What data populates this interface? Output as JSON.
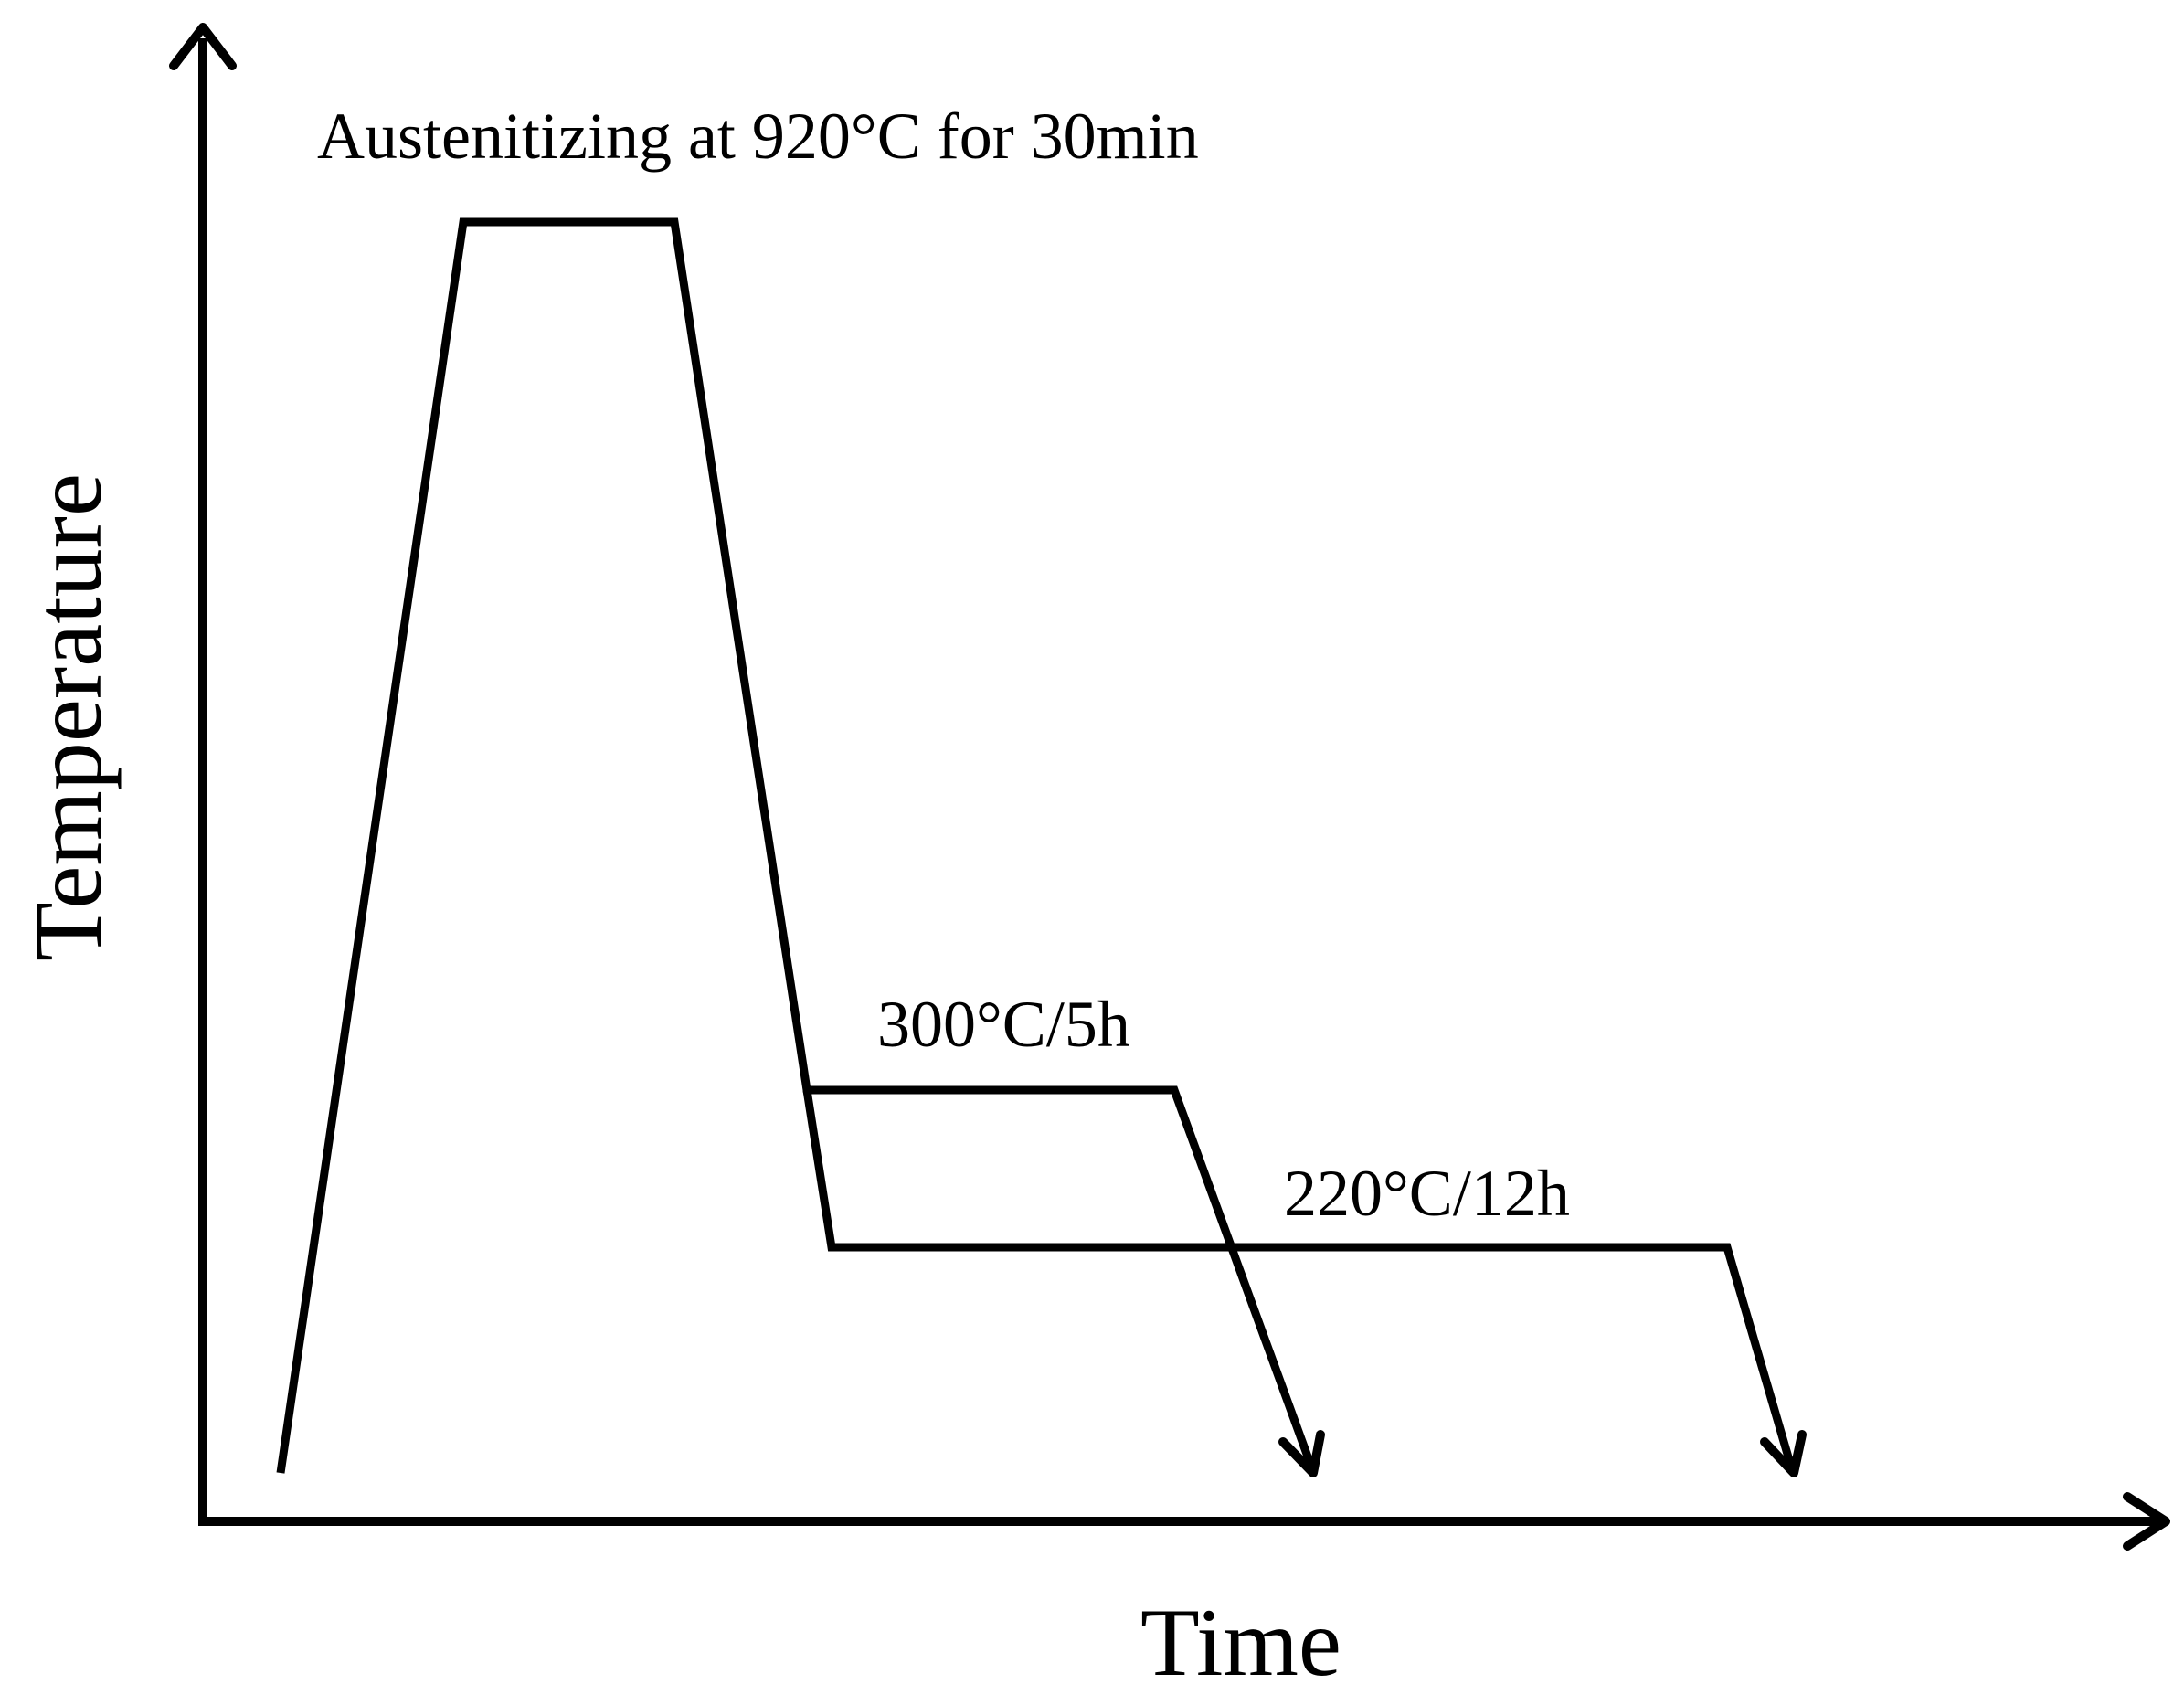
{
  "diagram": {
    "y_axis_label": "Temperature",
    "x_axis_label": "Time",
    "stages": {
      "austenitizing": "Austenitizing at 920°C for 30min",
      "hold_300": "300°C/5h",
      "hold_220": "220°C/12h"
    }
  }
}
